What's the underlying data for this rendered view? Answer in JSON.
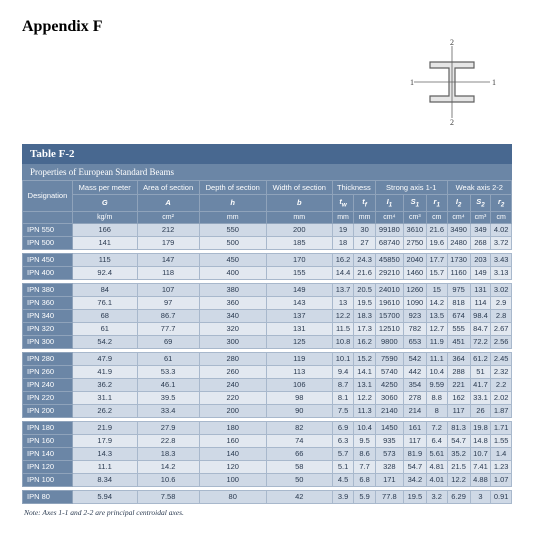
{
  "appendix": {
    "title": "Appendix F"
  },
  "diagram": {
    "width": 88,
    "height": 88,
    "flange_width": 44,
    "flange_thickness": 6,
    "web_height": 40,
    "web_thickness": 6,
    "stroke": "#606060",
    "fill": "#e6e6e6",
    "label_font": 8,
    "axis_label": [
      "1",
      "1",
      "2",
      "2"
    ]
  },
  "table": {
    "title": "Table F-2",
    "subtitle": "Properties of European Standard Beams",
    "note": "Note: Axes 1-1 and 2-2 are principal centroidal axes.",
    "header_tier1": [
      "Designation",
      "Mass per meter",
      "Area of section",
      "Depth of section",
      "Width of section",
      "Thickness",
      "Strong axis 1-1",
      "Weak axis 2-2"
    ],
    "header_tier1_colspans": [
      1,
      1,
      1,
      1,
      1,
      2,
      3,
      3
    ],
    "header_tier2": [
      "G",
      "A",
      "h",
      "b",
      "t_w",
      "t_f",
      "I_1",
      "S_1",
      "r_1",
      "I_2",
      "S_2",
      "r_2"
    ],
    "header_tier3": [
      "kg/m",
      "cm²",
      "mm",
      "mm",
      "mm",
      "mm",
      "cm⁴",
      "cm³",
      "cm",
      "cm⁴",
      "cm³",
      "cm"
    ],
    "groups": [
      [
        {
          "d": "IPN 550",
          "v": [
            "166",
            "212",
            "550",
            "200",
            "19",
            "30",
            "99180",
            "3610",
            "21.6",
            "3490",
            "349",
            "4.02"
          ]
        },
        {
          "d": "IPN 500",
          "v": [
            "141",
            "179",
            "500",
            "185",
            "18",
            "27",
            "68740",
            "2750",
            "19.6",
            "2480",
            "268",
            "3.72"
          ]
        }
      ],
      [
        {
          "d": "IPN 450",
          "v": [
            "115",
            "147",
            "450",
            "170",
            "16.2",
            "24.3",
            "45850",
            "2040",
            "17.7",
            "1730",
            "203",
            "3.43"
          ]
        },
        {
          "d": "IPN 400",
          "v": [
            "92.4",
            "118",
            "400",
            "155",
            "14.4",
            "21.6",
            "29210",
            "1460",
            "15.7",
            "1160",
            "149",
            "3.13"
          ]
        }
      ],
      [
        {
          "d": "IPN 380",
          "v": [
            "84",
            "107",
            "380",
            "149",
            "13.7",
            "20.5",
            "24010",
            "1260",
            "15",
            "975",
            "131",
            "3.02"
          ]
        },
        {
          "d": "IPN 360",
          "v": [
            "76.1",
            "97",
            "360",
            "143",
            "13",
            "19.5",
            "19610",
            "1090",
            "14.2",
            "818",
            "114",
            "2.9"
          ]
        },
        {
          "d": "IPN 340",
          "v": [
            "68",
            "86.7",
            "340",
            "137",
            "12.2",
            "18.3",
            "15700",
            "923",
            "13.5",
            "674",
            "98.4",
            "2.8"
          ]
        },
        {
          "d": "IPN 320",
          "v": [
            "61",
            "77.7",
            "320",
            "131",
            "11.5",
            "17.3",
            "12510",
            "782",
            "12.7",
            "555",
            "84.7",
            "2.67"
          ]
        },
        {
          "d": "IPN 300",
          "v": [
            "54.2",
            "69",
            "300",
            "125",
            "10.8",
            "16.2",
            "9800",
            "653",
            "11.9",
            "451",
            "72.2",
            "2.56"
          ]
        }
      ],
      [
        {
          "d": "IPN 280",
          "v": [
            "47.9",
            "61",
            "280",
            "119",
            "10.1",
            "15.2",
            "7590",
            "542",
            "11.1",
            "364",
            "61.2",
            "2.45"
          ]
        },
        {
          "d": "IPN 260",
          "v": [
            "41.9",
            "53.3",
            "260",
            "113",
            "9.4",
            "14.1",
            "5740",
            "442",
            "10.4",
            "288",
            "51",
            "2.32"
          ]
        },
        {
          "d": "IPN 240",
          "v": [
            "36.2",
            "46.1",
            "240",
            "106",
            "8.7",
            "13.1",
            "4250",
            "354",
            "9.59",
            "221",
            "41.7",
            "2.2"
          ]
        },
        {
          "d": "IPN 220",
          "v": [
            "31.1",
            "39.5",
            "220",
            "98",
            "8.1",
            "12.2",
            "3060",
            "278",
            "8.8",
            "162",
            "33.1",
            "2.02"
          ]
        },
        {
          "d": "IPN 200",
          "v": [
            "26.2",
            "33.4",
            "200",
            "90",
            "7.5",
            "11.3",
            "2140",
            "214",
            "8",
            "117",
            "26",
            "1.87"
          ]
        }
      ],
      [
        {
          "d": "IPN 180",
          "v": [
            "21.9",
            "27.9",
            "180",
            "82",
            "6.9",
            "10.4",
            "1450",
            "161",
            "7.2",
            "81.3",
            "19.8",
            "1.71"
          ]
        },
        {
          "d": "IPN 160",
          "v": [
            "17.9",
            "22.8",
            "160",
            "74",
            "6.3",
            "9.5",
            "935",
            "117",
            "6.4",
            "54.7",
            "14.8",
            "1.55"
          ]
        },
        {
          "d": "IPN 140",
          "v": [
            "14.3",
            "18.3",
            "140",
            "66",
            "5.7",
            "8.6",
            "573",
            "81.9",
            "5.61",
            "35.2",
            "10.7",
            "1.4"
          ]
        },
        {
          "d": "IPN 120",
          "v": [
            "11.1",
            "14.2",
            "120",
            "58",
            "5.1",
            "7.7",
            "328",
            "54.7",
            "4.81",
            "21.5",
            "7.41",
            "1.23"
          ]
        },
        {
          "d": "IPN 100",
          "v": [
            "8.34",
            "10.6",
            "100",
            "50",
            "4.5",
            "6.8",
            "171",
            "34.2",
            "4.01",
            "12.2",
            "4.88",
            "1.07"
          ]
        }
      ],
      [
        {
          "d": "IPN 80",
          "v": [
            "5.94",
            "7.58",
            "80",
            "42",
            "3.9",
            "5.9",
            "77.8",
            "19.5",
            "3.2",
            "6.29",
            "3",
            "0.91"
          ]
        }
      ]
    ]
  },
  "colors": {
    "header_bg": "#6b86a6",
    "title_bg": "#486890",
    "row_odd": "#cfd9e6",
    "row_even": "#e2e8f0",
    "border": "#a8b8cc",
    "text": "#2a3a50"
  }
}
